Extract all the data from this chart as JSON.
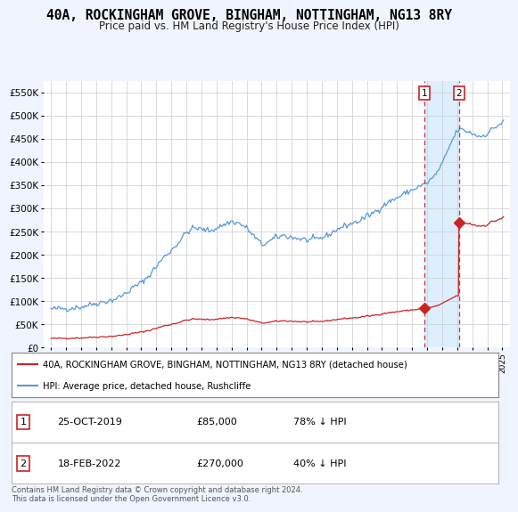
{
  "title": "40A, ROCKINGHAM GROVE, BINGHAM, NOTTINGHAM, NG13 8RY",
  "subtitle": "Price paid vs. HM Land Registry's House Price Index (HPI)",
  "legend_line1": "40A, ROCKINGHAM GROVE, BINGHAM, NOTTINGHAM, NG13 8RY (detached house)",
  "legend_line2": "HPI: Average price, detached house, Rushcliffe",
  "footer": "Contains HM Land Registry data © Crown copyright and database right 2024.\nThis data is licensed under the Open Government Licence v3.0.",
  "transaction1_date": "25-OCT-2019",
  "transaction1_price": "£85,000",
  "transaction1_hpi": "78% ↓ HPI",
  "transaction2_date": "18-FEB-2022",
  "transaction2_price": "£270,000",
  "transaction2_hpi": "40% ↓ HPI",
  "ylim": [
    0,
    575000
  ],
  "yticks": [
    0,
    50000,
    100000,
    150000,
    200000,
    250000,
    300000,
    350000,
    400000,
    450000,
    500000,
    550000
  ],
  "xlim_start": 1994.5,
  "xlim_end": 2025.5,
  "hpi_color": "#5599dd",
  "price_color": "#cc2222",
  "vline_color": "#cc3333",
  "shade_color": "#ddeeff",
  "background_color": "#f0f4ff",
  "plot_bg": "#ffffff",
  "title_fontsize": 10,
  "subtitle_fontsize": 9,
  "sale1_year": 2019.82,
  "sale2_year": 2022.12
}
